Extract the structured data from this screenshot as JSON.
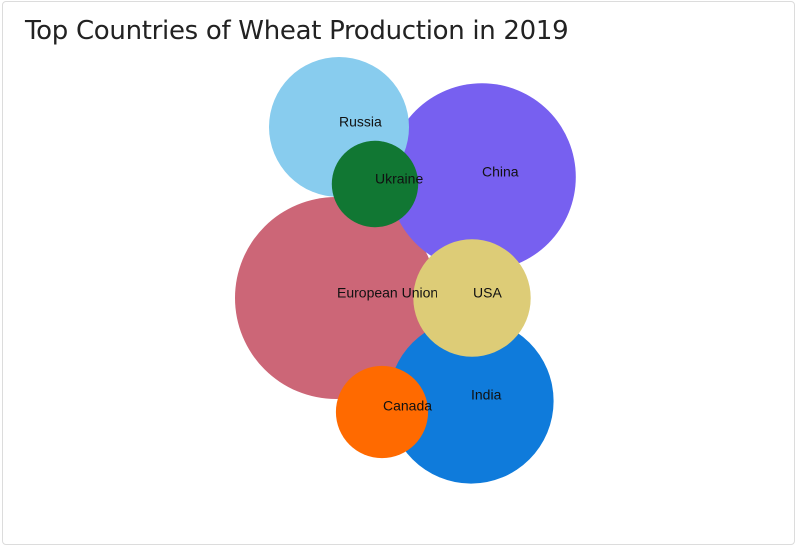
{
  "chart_data": {
    "type": "bubble",
    "title": "Top Countries of Wheat Production in 2019",
    "series": [
      {
        "name": "European Union",
        "value": 155.0,
        "color": "#cc6677"
      },
      {
        "name": "China",
        "value": 133.6,
        "color": "#7760f0"
      },
      {
        "name": "India",
        "value": 103.6,
        "color": "#0f7bdb"
      },
      {
        "name": "Russia",
        "value": 74.5,
        "color": "#88ccee"
      },
      {
        "name": "USA",
        "value": 52.3,
        "color": "#ddcc77"
      },
      {
        "name": "Canada",
        "value": 32.3,
        "color": "#ff6a00"
      },
      {
        "name": "Ukraine",
        "value": 28.3,
        "color": "#117733"
      }
    ]
  }
}
